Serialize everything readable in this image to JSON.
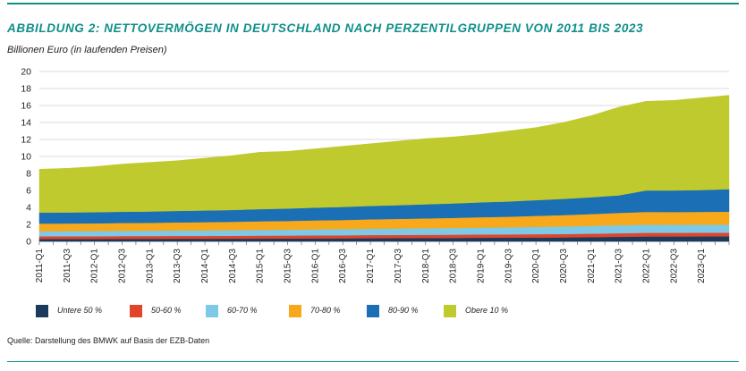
{
  "header": {
    "title": "ABBILDUNG 2: NETTOVERMÖGEN IN DEUTSCHLAND NACH PERZENTILGRUPPEN VON 2011 BIS 2023",
    "unit_label": "Billionen Euro (in laufenden Preisen)"
  },
  "footer": {
    "source": "Quelle: Darstellung des BMWK auf Basis der EZB-Daten"
  },
  "chart_data": {
    "type": "area",
    "stacked": true,
    "title": "ABBILDUNG 2: NETTOVERMÖGEN IN DEUTSCHLAND NACH PERZENTILGRUPPEN VON 2011 BIS 2023",
    "xlabel": "",
    "ylabel": "Billionen Euro (in laufenden Preisen)",
    "ylim": [
      0,
      20
    ],
    "yticks": [
      0,
      2,
      4,
      6,
      8,
      10,
      12,
      14,
      16,
      18,
      20
    ],
    "grid": true,
    "legend_position": "bottom",
    "tick_labels": [
      "2011-Q1",
      "2011-Q3",
      "2012-Q1",
      "2012-Q3",
      "2013-Q1",
      "2013-Q3",
      "2014-Q1",
      "2014-Q3",
      "2015-Q1",
      "2015-Q3",
      "2016-Q1",
      "2016-Q3",
      "2017-Q1",
      "2017-Q3",
      "2018-Q1",
      "2018-Q3",
      "2019-Q1",
      "2019-Q3",
      "2020-Q1",
      "2020-Q3",
      "2021-Q1",
      "2021-Q3",
      "2022-Q1",
      "2022-Q3",
      "2023-Q1"
    ],
    "num_quarters": 51,
    "totals_at_ticks": [
      8.5,
      8.6,
      8.8,
      9.1,
      9.3,
      9.5,
      9.8,
      10.1,
      10.5,
      10.6,
      10.9,
      11.2,
      11.5,
      11.8,
      12.1,
      12.3,
      12.6,
      13.0,
      13.4,
      14.0,
      14.8,
      15.8,
      16.5,
      16.6,
      16.9
    ],
    "final_total": 17.2,
    "series": [
      {
        "name": "Untere 50 %",
        "color": "#1b3a5c",
        "values": [
          0.28,
          0.29,
          0.29,
          0.3,
          0.3,
          0.31,
          0.31,
          0.32,
          0.33,
          0.34,
          0.35,
          0.36,
          0.38,
          0.39,
          0.4,
          0.41,
          0.43,
          0.44,
          0.45,
          0.47,
          0.5,
          0.54,
          0.58,
          0.58,
          0.59,
          0.6
        ]
      },
      {
        "name": "50-60 %",
        "color": "#e0452b",
        "values": [
          0.32,
          0.32,
          0.32,
          0.33,
          0.33,
          0.34,
          0.34,
          0.34,
          0.35,
          0.35,
          0.36,
          0.36,
          0.37,
          0.37,
          0.38,
          0.38,
          0.39,
          0.39,
          0.4,
          0.4,
          0.41,
          0.42,
          0.43,
          0.43,
          0.43,
          0.43
        ]
      },
      {
        "name": "60-70 %",
        "color": "#7ec8e8",
        "values": [
          0.6,
          0.6,
          0.61,
          0.62,
          0.63,
          0.64,
          0.65,
          0.66,
          0.68,
          0.69,
          0.71,
          0.72,
          0.74,
          0.76,
          0.77,
          0.79,
          0.81,
          0.83,
          0.86,
          0.89,
          0.92,
          0.95,
          0.96,
          0.95,
          0.95,
          0.95
        ]
      },
      {
        "name": "70-80 %",
        "color": "#f7a81b",
        "values": [
          0.9,
          0.9,
          0.91,
          0.92,
          0.93,
          0.95,
          0.97,
          0.99,
          1.01,
          1.03,
          1.06,
          1.08,
          1.11,
          1.13,
          1.16,
          1.19,
          1.22,
          1.25,
          1.3,
          1.34,
          1.39,
          1.45,
          1.5,
          1.5,
          1.51,
          1.52
        ]
      },
      {
        "name": "80-90 %",
        "color": "#1a6fb5",
        "values": [
          1.3,
          1.3,
          1.31,
          1.32,
          1.33,
          1.35,
          1.37,
          1.39,
          1.43,
          1.46,
          1.5,
          1.54,
          1.58,
          1.62,
          1.66,
          1.7,
          1.75,
          1.79,
          1.85,
          1.91,
          1.98,
          2.06,
          2.53,
          2.54,
          2.57,
          2.65
        ]
      },
      {
        "name": "Obere 10 %",
        "color": "#bfca2e",
        "values": [
          5.1,
          5.19,
          5.36,
          5.61,
          5.78,
          5.91,
          6.16,
          6.4,
          6.7,
          6.73,
          6.92,
          7.14,
          7.32,
          7.53,
          7.73,
          7.83,
          8.0,
          8.3,
          8.54,
          8.99,
          9.6,
          10.38,
          10.5,
          10.6,
          10.85,
          11.05
        ]
      }
    ]
  }
}
